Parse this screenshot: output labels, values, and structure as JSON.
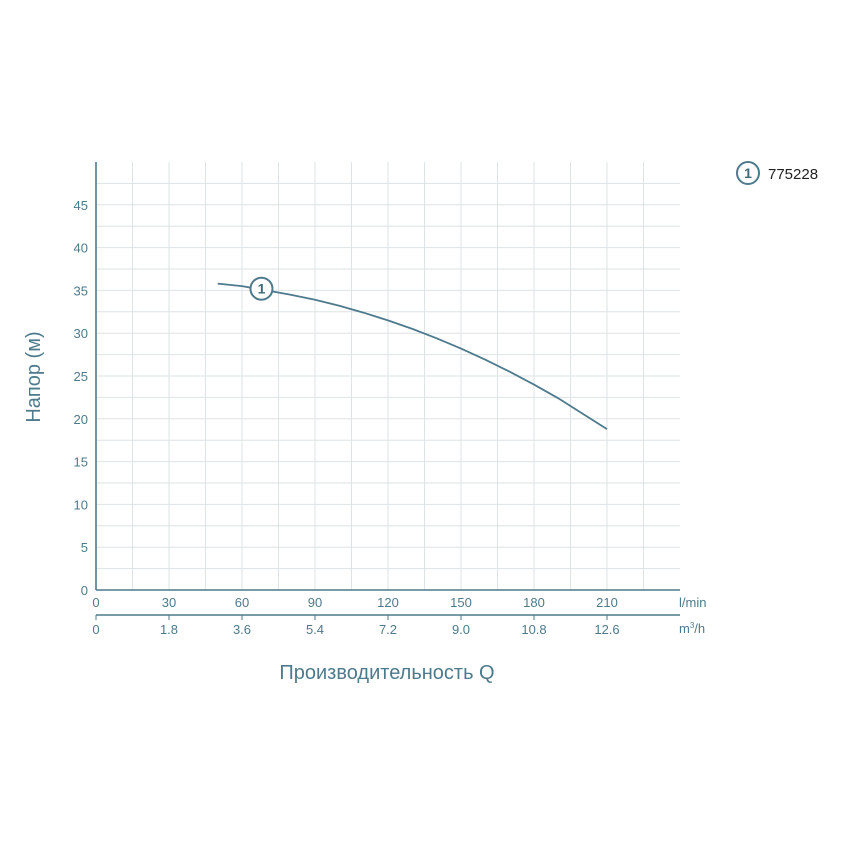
{
  "chart_data": {
    "type": "line",
    "ylabel": "Напор (м)",
    "xlabel": "Производительность Q",
    "x_unit_primary": "l/min",
    "x_unit_secondary_base": "m",
    "x_unit_secondary_sup": "3",
    "x_unit_secondary_tail": "/h",
    "xlim": [
      0,
      240
    ],
    "ylim": [
      0,
      50
    ],
    "x_ticks": [
      0,
      30,
      60,
      90,
      120,
      150,
      180,
      210
    ],
    "x_tick_labels": [
      "0",
      "30",
      "60",
      "90",
      "120",
      "150",
      "180",
      "210"
    ],
    "x2_tick_labels": [
      "0",
      "1.8",
      "3.6",
      "5.4",
      "7.2",
      "9.0",
      "10.8",
      "12.6"
    ],
    "y_ticks": [
      0,
      5,
      10,
      15,
      20,
      25,
      30,
      35,
      40,
      45
    ],
    "y_tick_labels": [
      "0",
      "5",
      "10",
      "15",
      "20",
      "25",
      "30",
      "35",
      "40",
      "45"
    ],
    "grid": true,
    "line_color": "#4d7a8c",
    "series": [
      {
        "name": "775228",
        "marker": "1",
        "x": [
          50,
          60,
          70,
          80,
          90,
          100,
          110,
          120,
          130,
          140,
          150,
          160,
          170,
          180,
          190,
          200,
          210
        ],
        "y": [
          35.8,
          35.5,
          35.0,
          34.5,
          33.9,
          33.2,
          32.4,
          31.5,
          30.5,
          29.4,
          28.2,
          26.9,
          25.5,
          24.0,
          22.4,
          20.6,
          18.8
        ],
        "marker_x": 68,
        "marker_y": 35.2
      }
    ],
    "legend": {
      "position": "top-right",
      "marker": "1",
      "label": "775228"
    }
  }
}
